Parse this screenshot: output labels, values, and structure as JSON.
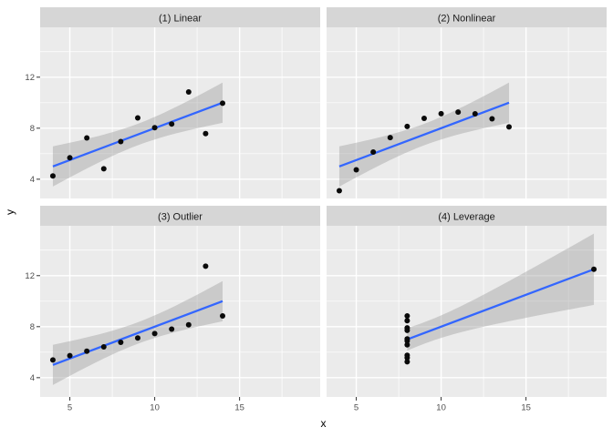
{
  "theme": {
    "background": "#FFFFFF",
    "panel_bg": "#EBEBEB",
    "strip_bg": "#D6D6D6",
    "grid_color": "#FFFFFF",
    "point_color": "#0A0A0A",
    "smooth_line_color": "#3366FF",
    "ribbon_color": "#999999",
    "ribbon_opacity": 0.4,
    "tick_color": "#333333",
    "tick_label_color": "#4D4D4D",
    "strip_text_color": "#1A1A1A",
    "axis_title_color": "#000000"
  },
  "chart_data": {
    "type": "scatter",
    "title": "",
    "xlabel": "x",
    "ylabel": "y",
    "legend": "none",
    "grid": true,
    "x_domain": [
      3.25,
      19.75
    ],
    "y_domain": [
      2.49,
      15.91
    ],
    "x_ticks": [
      5,
      10,
      15
    ],
    "y_ticks": [
      4,
      8,
      12
    ],
    "x_minor_ticks": [
      7.5,
      12.5,
      17.5
    ],
    "y_minor_ticks": [
      6,
      10,
      14
    ],
    "smooth": {
      "method": "lm",
      "level": 0.95,
      "t_value": 2.262
    },
    "facets": [
      {
        "label": "(1) Linear",
        "points": [
          [
            4,
            4.26
          ],
          [
            5,
            5.68
          ],
          [
            6,
            7.24
          ],
          [
            7,
            4.82
          ],
          [
            8,
            6.95
          ],
          [
            9,
            8.81
          ],
          [
            10,
            8.04
          ],
          [
            11,
            8.33
          ],
          [
            12,
            10.84
          ],
          [
            13,
            7.58
          ],
          [
            14,
            9.96
          ]
        ]
      },
      {
        "label": "(2) Nonlinear",
        "points": [
          [
            4,
            3.1
          ],
          [
            5,
            4.74
          ],
          [
            6,
            6.13
          ],
          [
            7,
            7.26
          ],
          [
            8,
            8.14
          ],
          [
            9,
            8.77
          ],
          [
            10,
            9.14
          ],
          [
            11,
            9.26
          ],
          [
            12,
            9.13
          ],
          [
            13,
            8.74
          ],
          [
            14,
            8.1
          ]
        ]
      },
      {
        "label": "(3) Outlier",
        "points": [
          [
            4,
            5.39
          ],
          [
            5,
            5.73
          ],
          [
            6,
            6.08
          ],
          [
            7,
            6.42
          ],
          [
            8,
            6.77
          ],
          [
            9,
            7.11
          ],
          [
            10,
            7.46
          ],
          [
            11,
            7.81
          ],
          [
            12,
            8.15
          ],
          [
            13,
            12.74
          ],
          [
            14,
            8.84
          ]
        ]
      },
      {
        "label": "(4) Leverage",
        "points": [
          [
            8,
            6.58
          ],
          [
            8,
            5.76
          ],
          [
            8,
            7.71
          ],
          [
            8,
            8.84
          ],
          [
            8,
            8.47
          ],
          [
            8,
            7.04
          ],
          [
            8,
            5.25
          ],
          [
            19,
            12.5
          ],
          [
            8,
            5.56
          ],
          [
            8,
            7.91
          ],
          [
            8,
            6.89
          ]
        ]
      }
    ]
  }
}
